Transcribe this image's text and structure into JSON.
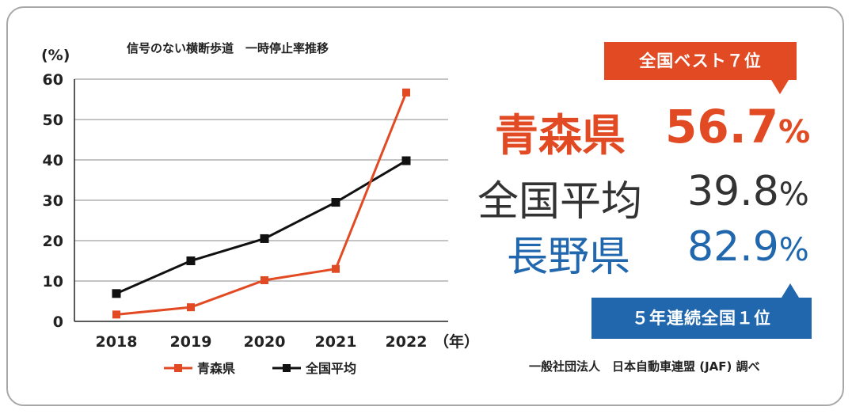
{
  "chart_data": {
    "type": "line",
    "title": "信号のない横断歩道　一時停止率推移",
    "ylabel": "(%)",
    "xlabel": "（年）",
    "categories": [
      "2018",
      "2019",
      "2020",
      "2021",
      "2022"
    ],
    "ylim": [
      0,
      60
    ],
    "yticks": [
      0,
      10,
      20,
      30,
      40,
      50,
      60
    ],
    "grid": true,
    "legend_position": "bottom",
    "series": [
      {
        "name": "青森県",
        "values": [
          1.7,
          3.5,
          10.2,
          13.0,
          56.7
        ],
        "color": "#e24a23"
      },
      {
        "name": "全国平均",
        "values": [
          6.9,
          15.0,
          20.5,
          29.5,
          39.8
        ],
        "color": "#111111"
      }
    ]
  },
  "highlight": {
    "badge_top": "全国ベスト７位",
    "rows": [
      {
        "name": "青森県",
        "value": "56.7",
        "unit": "%",
        "color": "#e24a23"
      },
      {
        "name": "全国平均",
        "value": "39.8",
        "unit": "%",
        "color": "#333333"
      },
      {
        "name": "長野県",
        "value": "82.9",
        "unit": "%",
        "color": "#2167ae"
      }
    ],
    "badge_bottom": "５年連続全国１位"
  },
  "source": "一般社団法人　日本自動車連盟 (JAF) 調べ",
  "colors": {
    "red": "#e24a23",
    "blue": "#2167ae",
    "border": "#a8a8a8"
  }
}
